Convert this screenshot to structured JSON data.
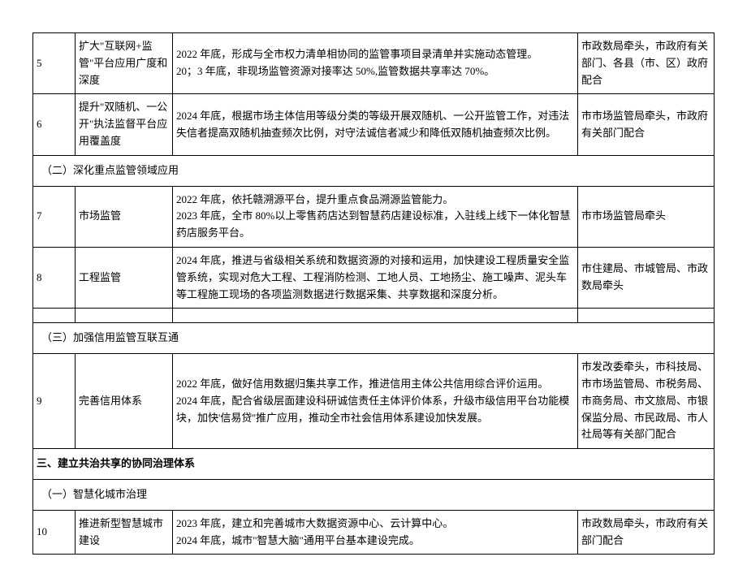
{
  "rows": [
    {
      "num": "5",
      "name": "扩大\"互联网+监管\"平台应用广度和深度",
      "desc": "2022 年底，形成与全市权力清单相协同的监管事项目录清单并实施动态管理。\n20；3 年底，非现场监管资源对接率达 50%,监管数据共享率达 70%。",
      "dept": "市政数局牵头，市政府有关部门、各县（市、区）政府配合"
    },
    {
      "num": "6",
      "name": "提升\"双随机、一公开\"执法监督平台应用覆盖度",
      "desc": "2024 年底，根据市场主体信用等级分类的等级开展双随机、一公开监管工作，对违法失信者提高双随机抽查频次比例，对守法诚信者减少和降低双随机抽查频次比例。",
      "dept": "市市场监管局牵头，市政府有关部门配合"
    }
  ],
  "sub2": "（二）深化重点监管领域应用",
  "rows2": [
    {
      "num": "7",
      "name": "市场监管",
      "desc": "2022 年底，依托赣溯源平台，提升重点食品溯源监管能力。\n2023 年底，全市 80%以上零售药店达到智慧药店建设标准，入驻线上线下一体化智慧药店服务平台。",
      "dept": "市市场监管局牵头"
    },
    {
      "num": "8",
      "name": "工程监管",
      "desc": "2024 年底，推进与省级相关系统和数据资源的对接和运用，加快建设工程质量安全监管系统，实现对危大工程、工程消防检测、工地人员、工地扬尘、施工噪声、泥头车等工程施工现场的各项监测数据进行数据采集、共享数据和深度分析。",
      "dept": "市住建局、市城管局、市政数局牵头"
    }
  ],
  "sub3": "（三）加强信用监管互联互通",
  "rows3": [
    {
      "num": "9",
      "name": "完善信用体系",
      "desc": "2022 年底，做好信用数据归集共享工作，推进信用主体公共信用综合评价运用。\n2024 年底，配合省级层面建设科研诚信责任主体评价体系，升级市级信用平台功能模块，加快'信易贷''推广应用，推动全市社会信用体系建设加快发展。",
      "dept": "市发改委牵头，市科技局、市市场监管局、市税务局、市商务局、市文旅局、市银保监分局、市民政局、市人社局等有关部门配合"
    }
  ],
  "section3": "三、建立共治共享的协同治理体系",
  "sub4": "（一）智慧化城市治理",
  "rows4": [
    {
      "num": "10",
      "name": "推进新型智慧城市建设",
      "desc": "2023 年底，建立和完善城市大数据资源中心、云计算中心。\n2024 年底，城市\"智慧大脑\"通用平台基本建设完成。",
      "dept": "市政数局牵头，市政府有关部门配合"
    }
  ]
}
